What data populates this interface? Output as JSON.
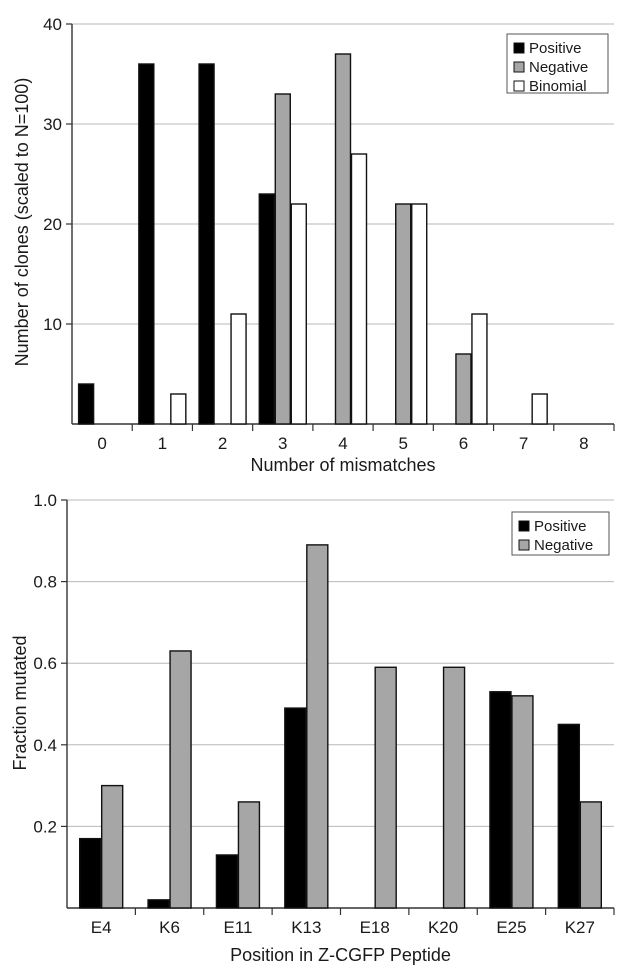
{
  "chart_data": [
    {
      "type": "bar",
      "title": "",
      "xlabel": "Number of mismatches",
      "ylabel": "Number of clones (scaled to N=100)",
      "categories": [
        "0",
        "1",
        "2",
        "3",
        "4",
        "5",
        "6",
        "7",
        "8"
      ],
      "series": [
        {
          "name": "Positive",
          "color": "#000000",
          "values": [
            4,
            36,
            36,
            23,
            0,
            0,
            0,
            0,
            0
          ]
        },
        {
          "name": "Negative",
          "color": "#a6a6a6",
          "values": [
            0,
            0,
            0,
            33,
            37,
            22,
            7,
            0,
            0
          ]
        },
        {
          "name": "Binomial",
          "color": "#ffffff",
          "values": [
            0,
            3,
            11,
            22,
            27,
            22,
            11,
            3,
            0
          ]
        }
      ],
      "ylim": [
        0,
        40
      ],
      "yticks": [
        "10",
        "20",
        "30",
        "40"
      ],
      "ytick_values": [
        10,
        20,
        30,
        40
      ],
      "grid": true,
      "legend": "top-right"
    },
    {
      "type": "bar",
      "title": "",
      "xlabel": "Position in Z-CGFP Peptide",
      "ylabel": "Fraction mutated",
      "categories": [
        "E4",
        "K6",
        "E11",
        "K13",
        "E18",
        "K20",
        "E25",
        "K27"
      ],
      "series": [
        {
          "name": "Positive",
          "color": "#000000",
          "values": [
            0.17,
            0.02,
            0.13,
            0.49,
            0,
            0,
            0.53,
            0.45
          ]
        },
        {
          "name": "Negative",
          "color": "#a6a6a6",
          "values": [
            0.3,
            0.63,
            0.26,
            0.89,
            0.59,
            0.59,
            0.52,
            0.26
          ]
        }
      ],
      "ylim": [
        0,
        1.0
      ],
      "yticks": [
        "0.2",
        "0.4",
        "0.6",
        "0.8",
        "1.0"
      ],
      "ytick_values": [
        0.2,
        0.4,
        0.6,
        0.8,
        1.0
      ],
      "grid": true,
      "legend": "top-right"
    }
  ]
}
